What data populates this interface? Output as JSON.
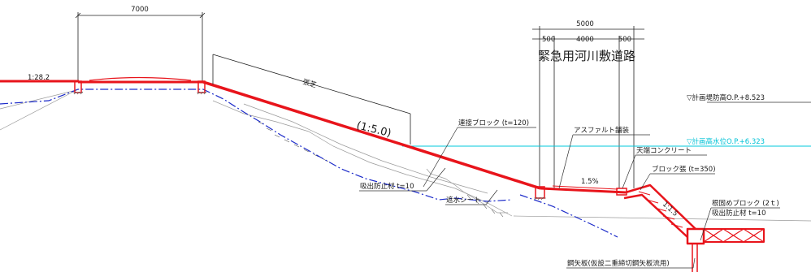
{
  "dimensions": {
    "crest_width": "7000",
    "road_total": "5000",
    "road_left_margin": "500",
    "road_width": "4000",
    "road_right_margin": "500"
  },
  "titles": {
    "emergency_road": "緊急用河川敷道路"
  },
  "slopes": {
    "left_slope": "1:28.2",
    "main_slope": "(1:5.0)",
    "road_slope": "1.5%",
    "block_slope": "1:1.5"
  },
  "labels": {
    "turf": "張芝",
    "connected_block": "連接ブロック (t=120)",
    "asphalt": "アスファルト舗装",
    "crown_concrete": "天端コンクリート",
    "block_revetment": "ブロック張 (t=350)",
    "root_block": "根固めブロック (2ｔ)",
    "suction_prevention_right": "吸出防止材 t=10",
    "suction_prevention_left": "吸出防止材 t=10",
    "waterproof_sheet": "遮水シート",
    "steel_sheet_pile": "鋼矢板(仮設二重締切鋼矢板流用)"
  },
  "levels": {
    "plan_embankment_height": "▽計画堤防高O.P.+8.523",
    "plan_high_water": "▽計画高水位O.P.+6.323"
  },
  "colors": {
    "design_section": "#e8141b",
    "existing_ground": "#1b2ac9",
    "water_level": "#00c8dc",
    "linework": "#222222"
  }
}
